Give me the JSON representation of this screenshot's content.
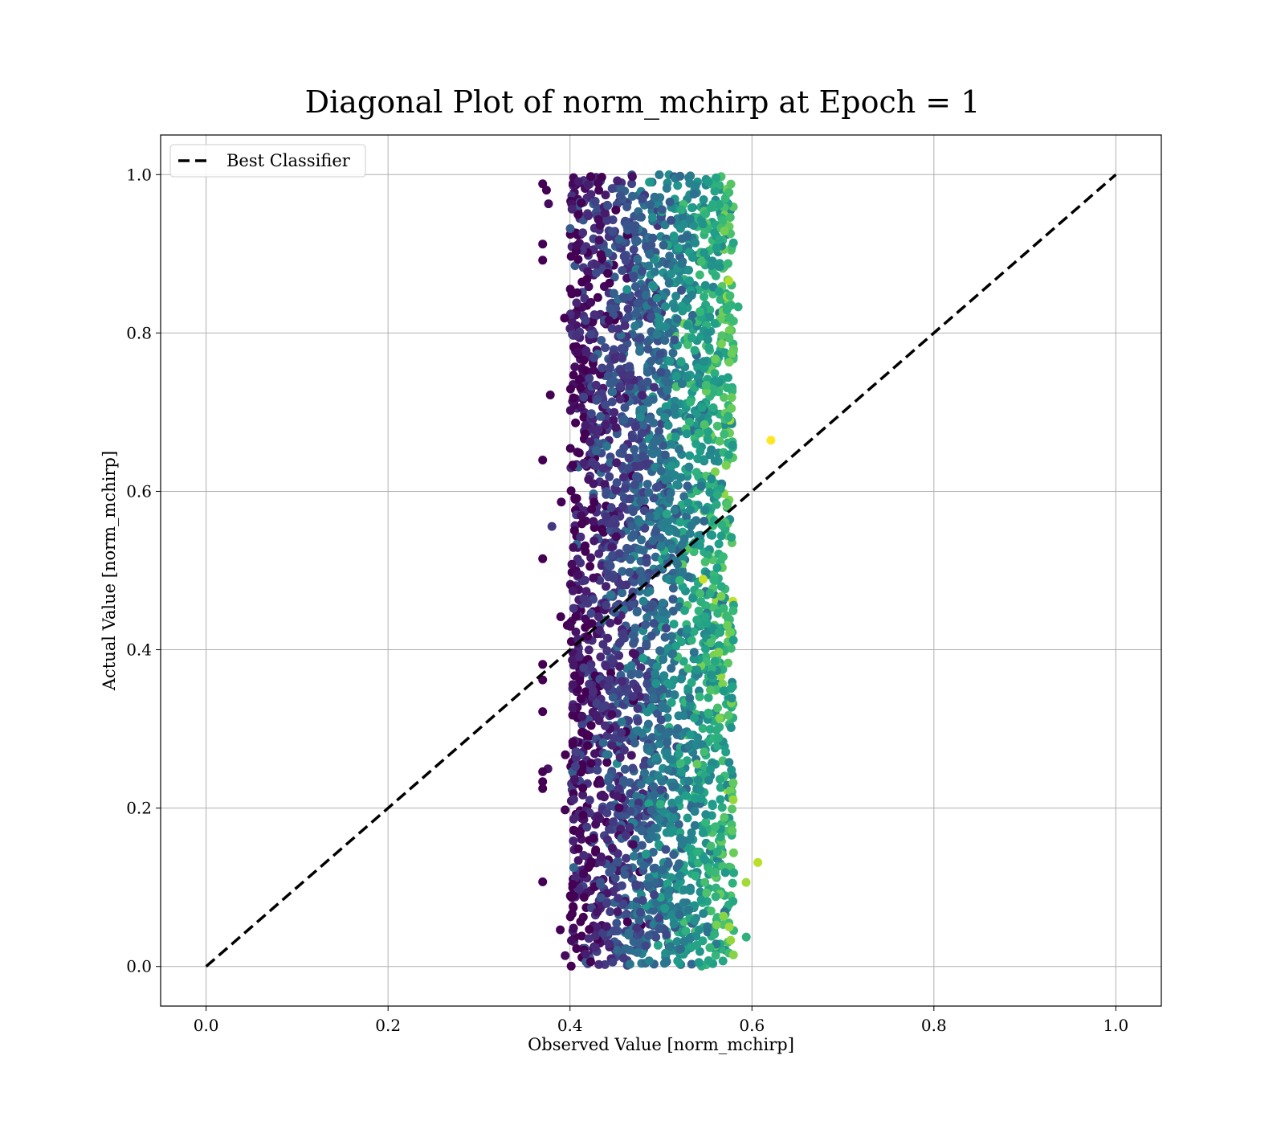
{
  "chart_data": {
    "type": "scatter",
    "title": "Diagonal Plot of norm_mchirp at Epoch = 1",
    "xlabel": "Observed Value [norm_mchirp]",
    "ylabel": "Actual Value [norm_mchirp]",
    "xlim": [
      -0.05,
      1.05
    ],
    "ylim": [
      -0.05,
      1.05
    ],
    "xticks": [
      0.0,
      0.2,
      0.4,
      0.6,
      0.8,
      1.0
    ],
    "yticks": [
      0.0,
      0.2,
      0.4,
      0.6,
      0.8,
      1.0
    ],
    "xtick_labels": [
      "0.0",
      "0.2",
      "0.4",
      "0.6",
      "0.8",
      "1.0"
    ],
    "ytick_labels": [
      "0.0",
      "0.2",
      "0.4",
      "0.6",
      "0.8",
      "1.0"
    ],
    "grid": true,
    "legend_position": "top-left",
    "colormap": "viridis",
    "reference_line": {
      "name": "Best Classifier",
      "x": [
        0.0,
        1.0
      ],
      "y": [
        0.0,
        1.0
      ],
      "style": "dashed",
      "color": "#000000"
    },
    "scatter_series": {
      "x_range": [
        0.37,
        0.635
      ],
      "y_range": [
        0.0,
        1.0
      ],
      "x_center": 0.47,
      "color_note": "point color shifts from dark purple (left) to green-yellow (right)"
    },
    "legend": [
      "Best Classifier"
    ]
  }
}
